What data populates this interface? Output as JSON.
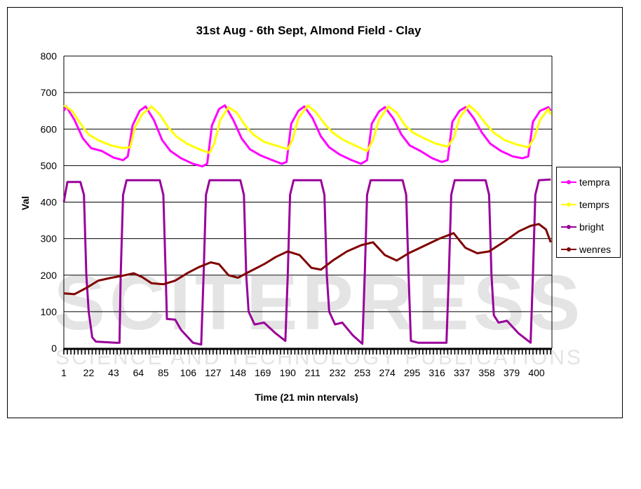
{
  "watermark": {
    "main": "SCITEPRESS",
    "sub": "SCIENCE AND TECHNOLOGY PUBLICATIONS"
  },
  "chart_data": {
    "type": "line",
    "title": "31st Aug - 6th Sept, Almond Field - Clay",
    "xlabel": "Time (21 min ntervals)",
    "ylabel": "Val",
    "xlim": [
      1,
      412
    ],
    "ylim": [
      0,
      800
    ],
    "yticks": [
      0,
      100,
      200,
      300,
      400,
      500,
      600,
      700,
      800
    ],
    "xticks": [
      1,
      22,
      43,
      64,
      85,
      106,
      127,
      148,
      169,
      190,
      211,
      232,
      253,
      274,
      295,
      316,
      337,
      358,
      379,
      400
    ],
    "grid": true,
    "legend_position": "right",
    "series": [
      {
        "name": "tempra",
        "color": "#ff00ff",
        "points": [
          [
            1,
            650
          ],
          [
            3,
            662
          ],
          [
            10,
            625
          ],
          [
            17,
            575
          ],
          [
            24,
            548
          ],
          [
            33,
            540
          ],
          [
            43,
            522
          ],
          [
            51,
            515
          ],
          [
            55,
            525
          ],
          [
            59,
            610
          ],
          [
            65,
            650
          ],
          [
            70,
            662
          ],
          [
            77,
            625
          ],
          [
            84,
            570
          ],
          [
            91,
            540
          ],
          [
            100,
            520
          ],
          [
            110,
            505
          ],
          [
            118,
            498
          ],
          [
            122,
            505
          ],
          [
            126,
            610
          ],
          [
            132,
            655
          ],
          [
            137,
            665
          ],
          [
            144,
            625
          ],
          [
            151,
            575
          ],
          [
            158,
            545
          ],
          [
            167,
            528
          ],
          [
            177,
            515
          ],
          [
            185,
            505
          ],
          [
            189,
            510
          ],
          [
            193,
            615
          ],
          [
            199,
            650
          ],
          [
            204,
            662
          ],
          [
            211,
            630
          ],
          [
            218,
            580
          ],
          [
            225,
            550
          ],
          [
            234,
            530
          ],
          [
            244,
            515
          ],
          [
            252,
            505
          ],
          [
            257,
            515
          ],
          [
            261,
            615
          ],
          [
            267,
            648
          ],
          [
            272,
            660
          ],
          [
            279,
            630
          ],
          [
            286,
            585
          ],
          [
            293,
            555
          ],
          [
            302,
            540
          ],
          [
            312,
            520
          ],
          [
            320,
            510
          ],
          [
            325,
            515
          ],
          [
            329,
            620
          ],
          [
            335,
            650
          ],
          [
            340,
            660
          ],
          [
            347,
            630
          ],
          [
            354,
            590
          ],
          [
            361,
            560
          ],
          [
            370,
            540
          ],
          [
            380,
            525
          ],
          [
            388,
            520
          ],
          [
            393,
            525
          ],
          [
            397,
            620
          ],
          [
            403,
            650
          ],
          [
            410,
            660
          ],
          [
            412,
            650
          ]
        ]
      },
      {
        "name": "temprs",
        "color": "#ffff00",
        "points": [
          [
            1,
            665
          ],
          [
            8,
            650
          ],
          [
            15,
            615
          ],
          [
            22,
            585
          ],
          [
            31,
            568
          ],
          [
            41,
            555
          ],
          [
            51,
            548
          ],
          [
            57,
            550
          ],
          [
            61,
            605
          ],
          [
            67,
            640
          ],
          [
            75,
            662
          ],
          [
            82,
            640
          ],
          [
            89,
            605
          ],
          [
            96,
            580
          ],
          [
            105,
            560
          ],
          [
            115,
            545
          ],
          [
            124,
            535
          ],
          [
            128,
            560
          ],
          [
            133,
            625
          ],
          [
            140,
            660
          ],
          [
            147,
            645
          ],
          [
            154,
            610
          ],
          [
            161,
            585
          ],
          [
            170,
            565
          ],
          [
            180,
            555
          ],
          [
            190,
            545
          ],
          [
            194,
            570
          ],
          [
            199,
            630
          ],
          [
            207,
            665
          ],
          [
            214,
            645
          ],
          [
            221,
            615
          ],
          [
            228,
            590
          ],
          [
            237,
            570
          ],
          [
            247,
            555
          ],
          [
            257,
            540
          ],
          [
            262,
            570
          ],
          [
            267,
            625
          ],
          [
            275,
            662
          ],
          [
            282,
            645
          ],
          [
            289,
            610
          ],
          [
            296,
            590
          ],
          [
            305,
            575
          ],
          [
            315,
            560
          ],
          [
            325,
            552
          ],
          [
            330,
            575
          ],
          [
            335,
            630
          ],
          [
            343,
            665
          ],
          [
            350,
            645
          ],
          [
            357,
            615
          ],
          [
            364,
            590
          ],
          [
            373,
            570
          ],
          [
            383,
            558
          ],
          [
            393,
            550
          ],
          [
            398,
            575
          ],
          [
            403,
            625
          ],
          [
            410,
            655
          ],
          [
            412,
            640
          ]
        ]
      },
      {
        "name": "bright",
        "color": "#990099",
        "points": [
          [
            1,
            400
          ],
          [
            4,
            455
          ],
          [
            15,
            455
          ],
          [
            18,
            420
          ],
          [
            20,
            200
          ],
          [
            22,
            100
          ],
          [
            25,
            30
          ],
          [
            28,
            18
          ],
          [
            45,
            15
          ],
          [
            48,
            15
          ],
          [
            49,
            200
          ],
          [
            51,
            420
          ],
          [
            54,
            460
          ],
          [
            82,
            460
          ],
          [
            85,
            420
          ],
          [
            87,
            200
          ],
          [
            88,
            80
          ],
          [
            95,
            78
          ],
          [
            100,
            50
          ],
          [
            110,
            15
          ],
          [
            117,
            10
          ],
          [
            119,
            200
          ],
          [
            121,
            420
          ],
          [
            124,
            460
          ],
          [
            150,
            460
          ],
          [
            153,
            420
          ],
          [
            155,
            200
          ],
          [
            157,
            100
          ],
          [
            162,
            65
          ],
          [
            170,
            70
          ],
          [
            180,
            40
          ],
          [
            188,
            20
          ],
          [
            190,
            200
          ],
          [
            192,
            420
          ],
          [
            195,
            460
          ],
          [
            218,
            460
          ],
          [
            221,
            420
          ],
          [
            223,
            200
          ],
          [
            225,
            100
          ],
          [
            230,
            65
          ],
          [
            236,
            70
          ],
          [
            245,
            35
          ],
          [
            253,
            12
          ],
          [
            255,
            200
          ],
          [
            257,
            420
          ],
          [
            260,
            460
          ],
          [
            287,
            460
          ],
          [
            290,
            420
          ],
          [
            292,
            200
          ],
          [
            294,
            20
          ],
          [
            300,
            15
          ],
          [
            324,
            15
          ],
          [
            326,
            200
          ],
          [
            328,
            420
          ],
          [
            331,
            460
          ],
          [
            357,
            460
          ],
          [
            360,
            420
          ],
          [
            362,
            200
          ],
          [
            364,
            90
          ],
          [
            368,
            70
          ],
          [
            375,
            75
          ],
          [
            385,
            40
          ],
          [
            395,
            15
          ],
          [
            397,
            200
          ],
          [
            399,
            420
          ],
          [
            402,
            460
          ],
          [
            412,
            462
          ]
        ]
      },
      {
        "name": "wenres",
        "color": "#800000",
        "points": [
          [
            1,
            150
          ],
          [
            10,
            148
          ],
          [
            20,
            165
          ],
          [
            30,
            185
          ],
          [
            40,
            192
          ],
          [
            50,
            198
          ],
          [
            60,
            205
          ],
          [
            67,
            195
          ],
          [
            75,
            178
          ],
          [
            85,
            175
          ],
          [
            95,
            185
          ],
          [
            105,
            205
          ],
          [
            115,
            222
          ],
          [
            125,
            235
          ],
          [
            132,
            230
          ],
          [
            140,
            200
          ],
          [
            148,
            193
          ],
          [
            158,
            210
          ],
          [
            170,
            230
          ],
          [
            180,
            250
          ],
          [
            190,
            265
          ],
          [
            200,
            255
          ],
          [
            210,
            220
          ],
          [
            218,
            215
          ],
          [
            228,
            240
          ],
          [
            240,
            265
          ],
          [
            252,
            282
          ],
          [
            262,
            290
          ],
          [
            272,
            255
          ],
          [
            282,
            240
          ],
          [
            292,
            260
          ],
          [
            305,
            280
          ],
          [
            318,
            300
          ],
          [
            330,
            315
          ],
          [
            340,
            275
          ],
          [
            350,
            260
          ],
          [
            360,
            265
          ],
          [
            372,
            290
          ],
          [
            385,
            320
          ],
          [
            395,
            335
          ],
          [
            402,
            340
          ],
          [
            408,
            325
          ],
          [
            412,
            290
          ]
        ]
      }
    ]
  }
}
